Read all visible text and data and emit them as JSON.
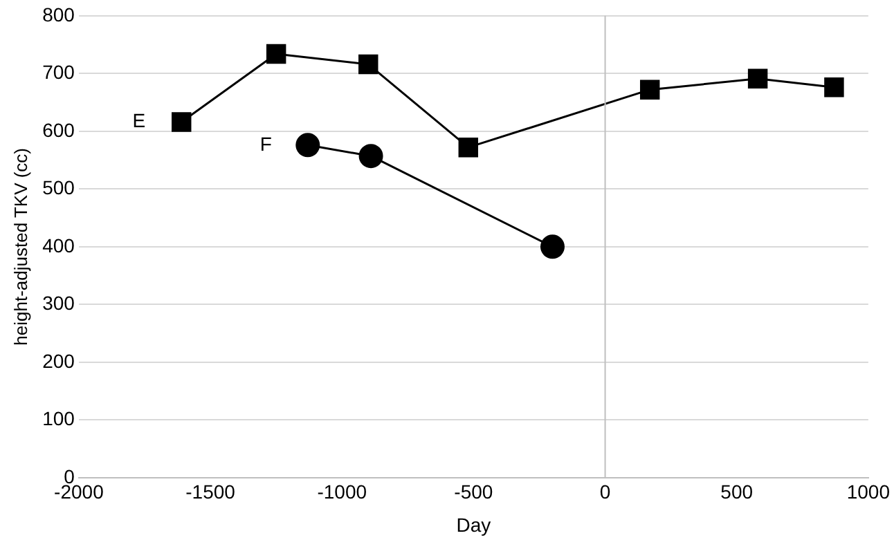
{
  "chart_data": {
    "type": "line",
    "xlabel": "Day",
    "ylabel": "height-adjusted TKV (cc)",
    "xlim": [
      -2000,
      1000
    ],
    "xticks": [
      -2000,
      -1500,
      -1000,
      -500,
      0,
      500,
      1000
    ],
    "ylim": [
      0,
      800
    ],
    "yticks": [
      0,
      100,
      200,
      300,
      400,
      500,
      600,
      700,
      800
    ],
    "grid": "y",
    "legend": false,
    "line_style": "solid",
    "ref_lines": [
      {
        "axis": "x",
        "value": 0,
        "color": "#bfbfbf"
      }
    ],
    "series": [
      {
        "name": "E",
        "color": "#000000",
        "marker": "square",
        "x": [
          -1610,
          -1250,
          -900,
          -520,
          170,
          580,
          870
        ],
        "values": [
          616,
          734,
          716,
          572,
          672,
          691,
          676
        ]
      },
      {
        "name": "F",
        "color": "#000000",
        "marker": "circle",
        "x": [
          -1130,
          -890,
          -200
        ],
        "values": [
          576,
          557,
          400
        ]
      }
    ]
  }
}
